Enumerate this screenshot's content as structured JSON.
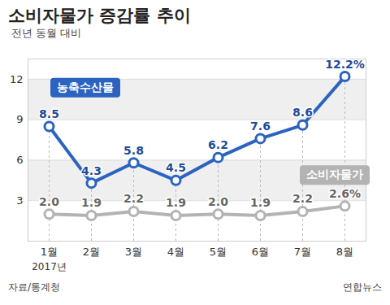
{
  "chart_data": {
    "type": "line",
    "title": "소비자물가 증감률 추이",
    "subtitle": "전년 동월 대비",
    "source": "자료/통계청",
    "credit": "연합뉴스",
    "categories": [
      "1월",
      "2월",
      "3월",
      "4월",
      "5월",
      "6월",
      "7월",
      "8월"
    ],
    "annotations": [
      {
        "text": "2017년",
        "x": "1월"
      }
    ],
    "series": [
      {
        "name": "농축수산물",
        "color": "#2b63c0",
        "marker": "circle",
        "values": [
          8.5,
          4.3,
          5.8,
          4.5,
          6.2,
          7.6,
          8.6,
          12.2
        ],
        "value_labels": [
          "8.5",
          "4.3",
          "5.8",
          "4.5",
          "6.2",
          "7.6",
          "8.6",
          "12.2%"
        ]
      },
      {
        "name": "소비자물가",
        "color": "#b3b3b3",
        "marker": "circle",
        "values": [
          2.0,
          1.9,
          2.2,
          1.9,
          2.0,
          1.9,
          2.2,
          2.6
        ],
        "value_labels": [
          "2.0",
          "1.9",
          "2.2",
          "1.9",
          "2.0",
          "1.9",
          "2.2",
          "2.6%"
        ]
      }
    ],
    "ylim": [
      0,
      13.5
    ],
    "yticks": [
      3,
      6,
      9,
      12
    ],
    "grid": true,
    "data_labels": true
  }
}
